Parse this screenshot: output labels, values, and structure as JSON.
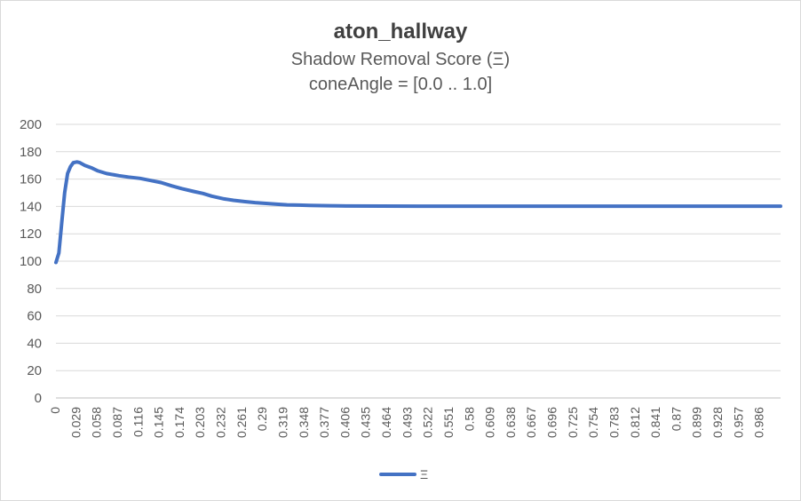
{
  "chart_data": {
    "type": "line",
    "title": "aton_hallway",
    "subtitle_lines": [
      "Shadow Removal Score (Ξ)",
      "coneAngle = [0.0 .. 1.0]"
    ],
    "xlabel": "",
    "ylabel": "",
    "ylim": [
      0,
      200
    ],
    "xlim": [
      0,
      1.0
    ],
    "y_ticks": [
      0,
      20,
      40,
      60,
      80,
      100,
      120,
      140,
      160,
      180,
      200
    ],
    "x_tick_labels": [
      "0",
      "0.029",
      "0.058",
      "0.087",
      "0.116",
      "0.145",
      "0.174",
      "0.203",
      "0.232",
      "0.261",
      "0.29",
      "0.319",
      "0.348",
      "0.377",
      "0.406",
      "0.435",
      "0.464",
      "0.493",
      "0.522",
      "0.551",
      "0.58",
      "0.609",
      "0.638",
      "0.667",
      "0.696",
      "0.725",
      "0.754",
      "0.783",
      "0.812",
      "0.841",
      "0.87",
      "0.899",
      "0.928",
      "0.957",
      "0.986"
    ],
    "grid": "horizontal",
    "legend": "bottom",
    "series": [
      {
        "name": "Ξ",
        "color": "#4472c4",
        "x": [
          0,
          0.004,
          0.008,
          0.012,
          0.016,
          0.02,
          0.024,
          0.029,
          0.033,
          0.04,
          0.05,
          0.058,
          0.07,
          0.087,
          0.1,
          0.116,
          0.13,
          0.145,
          0.16,
          0.174,
          0.19,
          0.203,
          0.215,
          0.232,
          0.245,
          0.261,
          0.275,
          0.29,
          0.305,
          0.319,
          0.335,
          0.35,
          0.377,
          0.4,
          0.5,
          0.6,
          0.7,
          0.8,
          0.9,
          1.0
        ],
        "y": [
          99,
          106,
          128,
          150,
          164,
          169,
          172,
          172.5,
          172,
          170,
          168,
          166,
          164,
          162.5,
          161.5,
          160.5,
          159,
          157.5,
          155,
          153,
          151,
          149.5,
          147.5,
          145.5,
          144.5,
          143.5,
          142.8,
          142.2,
          141.6,
          141.2,
          141,
          140.8,
          140.5,
          140.3,
          140.2,
          140.2,
          140.2,
          140.2,
          140.2,
          140.2
        ]
      }
    ]
  }
}
